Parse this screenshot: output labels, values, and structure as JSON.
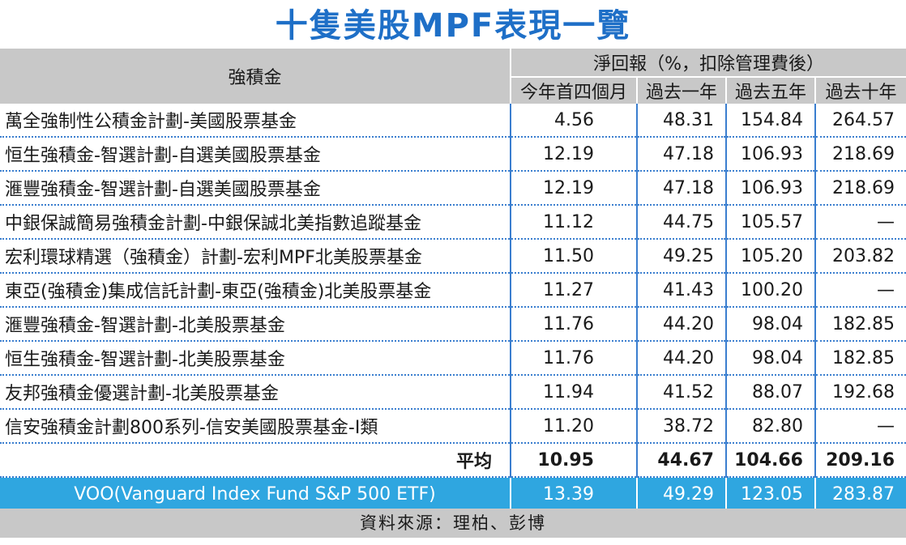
{
  "title": "十隻美股MPF表現一覽",
  "header": {
    "fund": "強積金",
    "returns": "淨回報（%，扣除管理費後）",
    "periods": [
      "今年首四個月",
      "過去一年",
      "過去五年",
      "過去十年"
    ]
  },
  "rows": [
    {
      "name": "萬全強制性公積金計劃-美國股票基金",
      "values": [
        "4.56",
        "48.31",
        "154.84",
        "264.57"
      ]
    },
    {
      "name": "恒生強積金-智選計劃-自選美國股票基金",
      "values": [
        "12.19",
        "47.18",
        "106.93",
        "218.69"
      ]
    },
    {
      "name": "滙豐強積金-智選計劃-自選美國股票基金",
      "values": [
        "12.19",
        "47.18",
        "106.93",
        "218.69"
      ]
    },
    {
      "name": "中銀保誠簡易強積金計劃-中銀保誠北美指數追蹤基金",
      "values": [
        "11.12",
        "44.75",
        "105.57",
        "—"
      ]
    },
    {
      "name": "宏利環球精選（強積金）計劃-宏利MPF北美股票基金",
      "values": [
        "11.50",
        "49.25",
        "105.20",
        "203.82"
      ]
    },
    {
      "name": "東亞(強積金)集成信託計劃-東亞(強積金)北美股票基金",
      "values": [
        "11.27",
        "41.43",
        "100.20",
        "—"
      ]
    },
    {
      "name": "滙豐強積金-智選計劃-北美股票基金",
      "values": [
        "11.76",
        "44.20",
        "98.04",
        "182.85"
      ]
    },
    {
      "name": "恒生強積金-智選計劃-北美股票基金",
      "values": [
        "11.76",
        "44.20",
        "98.04",
        "182.85"
      ]
    },
    {
      "name": "友邦強積金優選計劃-北美股票基金",
      "values": [
        "11.94",
        "41.52",
        "88.07",
        "192.68"
      ]
    },
    {
      "name": "信安強積金計劃800系列-信安美國股票基金-I類",
      "values": [
        "11.20",
        "38.72",
        "82.80",
        "—"
      ]
    }
  ],
  "average": {
    "name": "平均",
    "values": [
      "10.95",
      "44.67",
      "104.66",
      "209.16"
    ]
  },
  "voo": {
    "name": "VOO(Vanguard Index Fund S&P 500 ETF)",
    "values": [
      "13.39",
      "49.29",
      "123.05",
      "283.87"
    ]
  },
  "source": "資料來源：理柏、彭博",
  "colors": {
    "title": "#1e6fc7",
    "header_bg": "#c8c8c8",
    "divider": "#3a7ecf",
    "voo_bg": "#2fa6e0"
  }
}
